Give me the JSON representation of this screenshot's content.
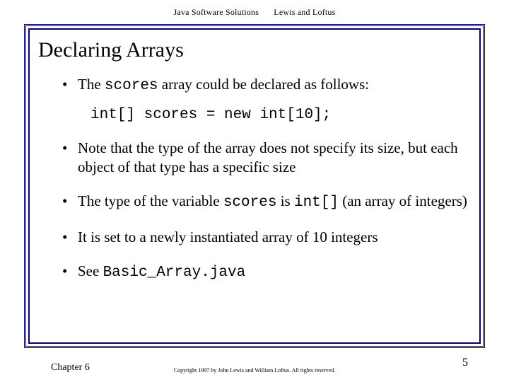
{
  "header": {
    "book": "Java Software Solutions",
    "authors": "Lewis and Loftus"
  },
  "title": "Declaring Arrays",
  "bullets": {
    "b1_pre": "The ",
    "b1_mono": "scores",
    "b1_post": " array could be declared as follows:",
    "code": "int[] scores = new int[10];",
    "b2": "Note that the type of the array does not specify its size, but each object of that type has a specific size",
    "b3_pre": "The type of the variable ",
    "b3_mono1": "scores",
    "b3_mid": " is ",
    "b3_mono2": "int[]",
    "b3_post": " (an array of integers)",
    "b4": "It is set to a newly instantiated array of 10 integers",
    "b5_pre": "See ",
    "b5_mono": "Basic_Array.java"
  },
  "footer": {
    "chapter": "Chapter 6",
    "copyright": "Copyright 1997 by John Lewis and William Loftus. All rights reserved.",
    "page": "5"
  },
  "colors": {
    "border": "#000080",
    "text": "#000000",
    "background": "#ffffff"
  }
}
